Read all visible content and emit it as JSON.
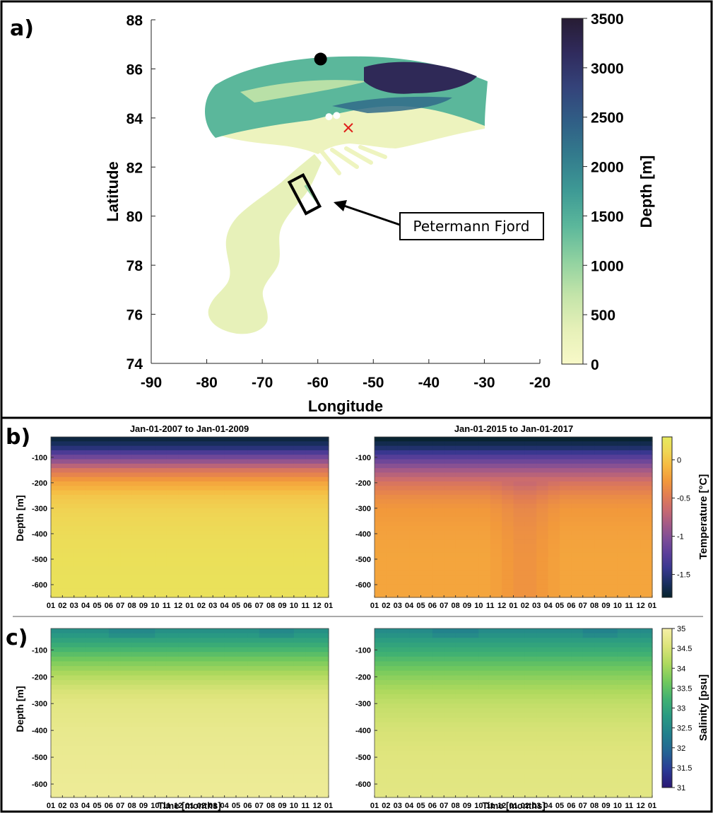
{
  "panel_labels": [
    "a)",
    "b)",
    "c)"
  ],
  "colors": {
    "depth_ramp": [
      "#f8f9c8",
      "#e6f0b8",
      "#c3e4a9",
      "#8fd1a0",
      "#5bb79b",
      "#3e9a95",
      "#337c8d",
      "#305f86",
      "#34437a",
      "#302b5d",
      "#271c33"
    ],
    "thermal_ramp": [
      "#07232c",
      "#1a2f62",
      "#38378f",
      "#5b3f9a",
      "#7d4d97",
      "#a35a87",
      "#c96a70",
      "#e27e52",
      "#f2993b",
      "#f6b941",
      "#efd655",
      "#e6ea5e"
    ],
    "haline_ramp": [
      "#2a1874",
      "#2a3a95",
      "#246394",
      "#217f8d",
      "#299983",
      "#40b172",
      "#72c95d",
      "#aed95d",
      "#dde47a",
      "#f6efa6"
    ],
    "marker_black": "#000000",
    "marker_white": "#ffffff",
    "marker_x": "#e0201b"
  },
  "chart_data": [
    {
      "type": "heatmap",
      "panel": "a)",
      "description": "map",
      "xlabel": "Longitude",
      "ylabel": "Latitude",
      "xlim": [
        -90,
        -20
      ],
      "ylim": [
        74,
        88
      ],
      "x_ticks": [
        "-90",
        "-80",
        "-70",
        "-60",
        "-50",
        "-40",
        "-30",
        "-20"
      ],
      "y_ticks": [
        "74",
        "76",
        "78",
        "80",
        "82",
        "84",
        "86",
        "88"
      ],
      "colorbar": {
        "label": "Depth [m]",
        "range": [
          0,
          3500
        ],
        "ticks": [
          "0",
          "500",
          "1000",
          "1500",
          "2000",
          "2500",
          "3000",
          "3500"
        ]
      },
      "markers": [
        {
          "kind": "black-dot",
          "lon": -59.5,
          "lat": 86.4
        },
        {
          "kind": "white-dot",
          "lon": -58.0,
          "lat": 84.05
        },
        {
          "kind": "white-dot",
          "lon": -56.6,
          "lat": 84.1
        },
        {
          "kind": "red-x",
          "lon": -54.5,
          "lat": 83.6
        }
      ],
      "annotation": {
        "text": "Petermann Fjord",
        "box_center": [
          -61.5,
          81.0
        ]
      }
    },
    {
      "type": "heatmap",
      "panel": "b)",
      "variable": "Temperature",
      "colorbar": {
        "label": "Temperature [°C]",
        "range": [
          -1.8,
          0.3
        ],
        "ticks": [
          "0",
          "-0.5",
          "-1",
          "-1.5"
        ]
      },
      "y_label": "Depth [m]",
      "ylim": [
        -650,
        -20
      ],
      "y_ticks": [
        "-100",
        "-200",
        "-300",
        "-400",
        "-500",
        "-600"
      ],
      "x_ticks": [
        "01",
        "02",
        "03",
        "04",
        "05",
        "06",
        "07",
        "08",
        "09",
        "10",
        "11",
        "12",
        "01",
        "02",
        "03",
        "04",
        "05",
        "06",
        "07",
        "08",
        "09",
        "10",
        "11",
        "12",
        "01"
      ],
      "subplots": [
        {
          "title": "Jan-01-2007 to Jan-01-2009",
          "depth_profile": [
            [
              -25,
              -1.75
            ],
            [
              -60,
              -1.55
            ],
            [
              -100,
              -1.1
            ],
            [
              -150,
              -0.55
            ],
            [
              -200,
              -0.2
            ],
            [
              -250,
              0.0
            ],
            [
              -300,
              0.08
            ],
            [
              -400,
              0.16
            ],
            [
              -500,
              0.2
            ],
            [
              -650,
              0.22
            ]
          ]
        },
        {
          "title": "Jan-01-2015 to Jan-01-2017",
          "depth_profile": [
            [
              -25,
              -1.8
            ],
            [
              -60,
              -1.6
            ],
            [
              -100,
              -1.25
            ],
            [
              -150,
              -0.85
            ],
            [
              -200,
              -0.55
            ],
            [
              -250,
              -0.38
            ],
            [
              -300,
              -0.28
            ],
            [
              -400,
              -0.22
            ],
            [
              -500,
              -0.2
            ],
            [
              -650,
              -0.2
            ]
          ]
        }
      ]
    },
    {
      "type": "heatmap",
      "panel": "c)",
      "variable": "Salinity",
      "xlabel": "Time [months]",
      "colorbar": {
        "label": "Salinity [psu]",
        "range": [
          31,
          35
        ],
        "ticks": [
          "35",
          "34.5",
          "34",
          "33.5",
          "33",
          "32.5",
          "32",
          "31.5",
          "31"
        ]
      },
      "y_label": "Depth [m]",
      "ylim": [
        -650,
        -20
      ],
      "y_ticks": [
        "-100",
        "-200",
        "-300",
        "-400",
        "-500",
        "-600"
      ],
      "x_ticks": [
        "01",
        "02",
        "03",
        "04",
        "05",
        "06",
        "07",
        "08",
        "09",
        "10",
        "11",
        "12",
        "01",
        "02",
        "03",
        "04",
        "05",
        "06",
        "07",
        "08",
        "09",
        "10",
        "11",
        "12",
        "01"
      ],
      "subplots": [
        {
          "title": "",
          "depth_profile": [
            [
              -25,
              32.6
            ],
            [
              -60,
              32.9
            ],
            [
              -100,
              33.3
            ],
            [
              -150,
              33.8
            ],
            [
              -200,
              34.2
            ],
            [
              -250,
              34.5
            ],
            [
              -300,
              34.65
            ],
            [
              -400,
              34.75
            ],
            [
              -500,
              34.8
            ],
            [
              -650,
              34.85
            ]
          ]
        },
        {
          "title": "",
          "depth_profile": [
            [
              -25,
              32.5
            ],
            [
              -60,
              32.8
            ],
            [
              -100,
              33.1
            ],
            [
              -150,
              33.5
            ],
            [
              -200,
              33.85
            ],
            [
              -250,
              34.1
            ],
            [
              -300,
              34.3
            ],
            [
              -400,
              34.5
            ],
            [
              -500,
              34.6
            ],
            [
              -650,
              34.65
            ]
          ]
        }
      ]
    }
  ]
}
